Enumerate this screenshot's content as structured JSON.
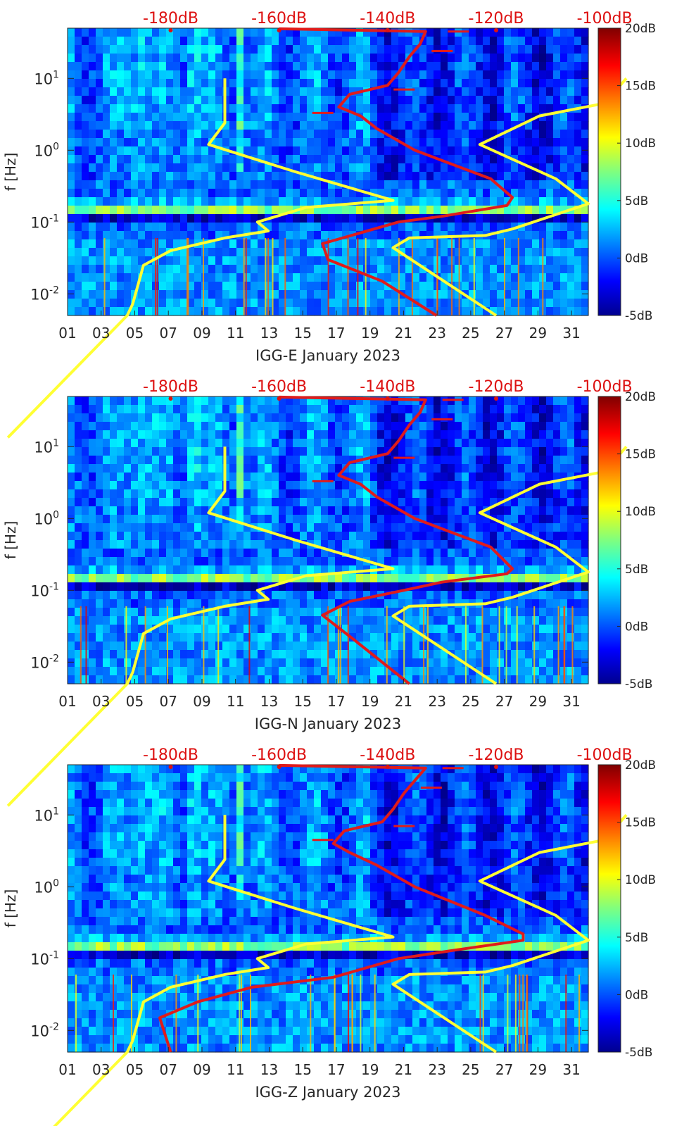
{
  "colors": {
    "noise_model_line": "#ffff33",
    "median_psd_line": "#e01b1b",
    "top_axis_text": "#dd1111",
    "axis_text": "#262626"
  },
  "colormap": "jet",
  "chart_data": [
    {
      "type": "heatmap",
      "title": "",
      "xlabel": "IGG-E January 2023",
      "ylabel": "f [Hz]",
      "x_ticks": [
        "01",
        "03",
        "05",
        "07",
        "09",
        "11",
        "13",
        "15",
        "17",
        "19",
        "21",
        "23",
        "25",
        "27",
        "29",
        "31"
      ],
      "x_range_days": [
        1,
        32
      ],
      "y_scale": "log",
      "y_range_hz": [
        0.005,
        50
      ],
      "y_ticks": [
        "10^-2",
        "10^-1",
        "10^0",
        "10^1"
      ],
      "top_axis_ticks": [
        "-180dB",
        "-160dB",
        "-140dB",
        "-120dB",
        "-100dB"
      ],
      "top_axis_range_db": [
        -199,
        -103
      ],
      "colorbar_ticks": [
        "20dB",
        "15dB",
        "10dB",
        "5dB",
        "0dB",
        "-5dB"
      ],
      "colorbar_range_db": [
        -5,
        20
      ],
      "series": [
        {
          "kind": "noise-model-lines",
          "lines": [
            {
              "part": "low-noise-model",
              "points": [
                [
                  -210,
                  0.0001
                ],
                [
                  -188,
                  0.005
                ],
                [
                  -187,
                  0.0072
                ],
                [
                  -185,
                  0.025
                ],
                [
                  -180,
                  0.04
                ],
                [
                  -170,
                  0.06
                ],
                [
                  -162,
                  0.075
                ],
                [
                  -164,
                  0.1
                ],
                [
                  -155,
                  0.16
                ],
                [
                  -139,
                  0.2
                ],
                [
                  -157,
                  0.5
                ],
                [
                  -173,
                  1.2
                ],
                [
                  -170,
                  2.4
                ],
                [
                  -170,
                  4.4
                ],
                [
                  -170,
                  10
                ]
              ]
            },
            {
              "part": "high-noise-model",
              "points": [
                [
                  -120,
                  0.005
                ],
                [
                  -139,
                  0.044
                ],
                [
                  -136,
                  0.06
                ],
                [
                  -122,
                  0.065
                ],
                [
                  -117,
                  0.08
                ],
                [
                  -103,
                  0.18
                ],
                [
                  -109,
                  0.4
                ],
                [
                  -123,
                  1.2
                ],
                [
                  -112,
                  3.0
                ],
                [
                  -100,
                  4.5
                ],
                [
                  -96,
                  10
                ]
              ]
            }
          ]
        },
        {
          "kind": "median-psd-line",
          "points": [
            [
              -131,
              0.005
            ],
            [
              -141,
              0.015
            ],
            [
              -151,
              0.03
            ],
            [
              -152,
              0.05
            ],
            [
              -138,
              0.1
            ],
            [
              -130,
              0.12
            ],
            [
              -118,
              0.17
            ],
            [
              -117,
              0.22
            ],
            [
              -121,
              0.4
            ],
            [
              -135,
              1.0
            ],
            [
              -142,
              2.0
            ],
            [
              -145,
              3.0
            ],
            [
              -149,
              4.0
            ],
            [
              -147,
              6.0
            ],
            [
              -140,
              8.0
            ],
            [
              -138,
              12
            ],
            [
              -136,
              20
            ],
            [
              -134,
              30
            ],
            [
              -133,
              45
            ],
            [
              -160,
              49
            ]
          ],
          "peaks": [
            [
              -150,
              3.3
            ],
            [
              -135,
              7
            ],
            [
              -128,
              24
            ],
            [
              -125,
              45
            ]
          ]
        }
      ]
    },
    {
      "type": "heatmap",
      "title": "",
      "xlabel": "IGG-N January 2023",
      "ylabel": "f [Hz]",
      "x_ticks": [
        "01",
        "03",
        "05",
        "07",
        "09",
        "11",
        "13",
        "15",
        "17",
        "19",
        "21",
        "23",
        "25",
        "27",
        "29",
        "31"
      ],
      "x_range_days": [
        1,
        32
      ],
      "y_scale": "log",
      "y_range_hz": [
        0.005,
        50
      ],
      "y_ticks": [
        "10^-2",
        "10^-1",
        "10^0",
        "10^1"
      ],
      "top_axis_ticks": [
        "-180dB",
        "-160dB",
        "-140dB",
        "-120dB",
        "-100dB"
      ],
      "top_axis_range_db": [
        -199,
        -103
      ],
      "colorbar_ticks": [
        "20dB",
        "15dB",
        "10dB",
        "5dB",
        "0dB",
        "-5dB"
      ],
      "colorbar_range_db": [
        -5,
        20
      ],
      "series": [
        {
          "kind": "noise-model-lines",
          "lines": [
            {
              "part": "low-noise-model",
              "points": [
                [
                  -210,
                  0.0001
                ],
                [
                  -188,
                  0.005
                ],
                [
                  -187,
                  0.0072
                ],
                [
                  -185,
                  0.025
                ],
                [
                  -180,
                  0.04
                ],
                [
                  -170,
                  0.06
                ],
                [
                  -162,
                  0.075
                ],
                [
                  -164,
                  0.1
                ],
                [
                  -155,
                  0.16
                ],
                [
                  -139,
                  0.2
                ],
                [
                  -157,
                  0.5
                ],
                [
                  -173,
                  1.2
                ],
                [
                  -170,
                  2.4
                ],
                [
                  -170,
                  4.4
                ],
                [
                  -170,
                  10
                ]
              ]
            },
            {
              "part": "high-noise-model",
              "points": [
                [
                  -120,
                  0.005
                ],
                [
                  -139,
                  0.044
                ],
                [
                  -136,
                  0.06
                ],
                [
                  -122,
                  0.065
                ],
                [
                  -117,
                  0.08
                ],
                [
                  -103,
                  0.18
                ],
                [
                  -109,
                  0.4
                ],
                [
                  -123,
                  1.2
                ],
                [
                  -112,
                  3.0
                ],
                [
                  -100,
                  4.5
                ],
                [
                  -96,
                  10
                ]
              ]
            }
          ]
        },
        {
          "kind": "median-psd-line",
          "points": [
            [
              -136,
              0.005
            ],
            [
              -146,
              0.02
            ],
            [
              -152,
              0.045
            ],
            [
              -147,
              0.07
            ],
            [
              -137,
              0.1
            ],
            [
              -130,
              0.13
            ],
            [
              -118,
              0.17
            ],
            [
              -117,
              0.2
            ],
            [
              -121,
              0.4
            ],
            [
              -135,
              1.0
            ],
            [
              -142,
              2.0
            ],
            [
              -145,
              3.0
            ],
            [
              -149,
              4.0
            ],
            [
              -147,
              6.0
            ],
            [
              -140,
              8.0
            ],
            [
              -138,
              12
            ],
            [
              -136,
              20
            ],
            [
              -134,
              30
            ],
            [
              -133,
              45
            ],
            [
              -160,
              49
            ]
          ],
          "peaks": [
            [
              -150,
              3.3
            ],
            [
              -135,
              7
            ],
            [
              -128,
              24
            ],
            [
              -126,
              45
            ]
          ]
        }
      ]
    },
    {
      "type": "heatmap",
      "title": "",
      "xlabel": "IGG-Z January 2023",
      "ylabel": "f [Hz]",
      "x_ticks": [
        "01",
        "03",
        "05",
        "07",
        "09",
        "11",
        "13",
        "15",
        "17",
        "19",
        "21",
        "23",
        "25",
        "27",
        "29",
        "31"
      ],
      "x_range_days": [
        1,
        32
      ],
      "y_scale": "log",
      "y_range_hz": [
        0.005,
        50
      ],
      "y_ticks": [
        "10^-2",
        "10^-1",
        "10^0",
        "10^1"
      ],
      "top_axis_ticks": [
        "-180dB",
        "-160dB",
        "-140dB",
        "-120dB",
        "-100dB"
      ],
      "top_axis_range_db": [
        -199,
        -103
      ],
      "colorbar_ticks": [
        "20dB",
        "15dB",
        "10dB",
        "5dB",
        "0dB",
        "-5dB"
      ],
      "colorbar_range_db": [
        -5,
        20
      ],
      "series": [
        {
          "kind": "noise-model-lines",
          "lines": [
            {
              "part": "low-noise-model",
              "points": [
                [
                  -210,
                  0.0001
                ],
                [
                  -188,
                  0.005
                ],
                [
                  -187,
                  0.0072
                ],
                [
                  -185,
                  0.025
                ],
                [
                  -180,
                  0.04
                ],
                [
                  -170,
                  0.06
                ],
                [
                  -162,
                  0.075
                ],
                [
                  -164,
                  0.1
                ],
                [
                  -155,
                  0.16
                ],
                [
                  -139,
                  0.2
                ],
                [
                  -157,
                  0.5
                ],
                [
                  -173,
                  1.2
                ],
                [
                  -170,
                  2.4
                ],
                [
                  -170,
                  4.4
                ],
                [
                  -170,
                  10
                ]
              ]
            },
            {
              "part": "high-noise-model",
              "points": [
                [
                  -120,
                  0.005
                ],
                [
                  -139,
                  0.044
                ],
                [
                  -136,
                  0.06
                ],
                [
                  -122,
                  0.065
                ],
                [
                  -117,
                  0.08
                ],
                [
                  -103,
                  0.18
                ],
                [
                  -109,
                  0.4
                ],
                [
                  -123,
                  1.2
                ],
                [
                  -112,
                  3.0
                ],
                [
                  -100,
                  4.5
                ],
                [
                  -96,
                  10
                ]
              ]
            }
          ]
        },
        {
          "kind": "median-psd-line",
          "points": [
            [
              -180,
              0.005
            ],
            [
              -182,
              0.015
            ],
            [
              -175,
              0.025
            ],
            [
              -165,
              0.04
            ],
            [
              -150,
              0.055
            ],
            [
              -138,
              0.1
            ],
            [
              -128,
              0.13
            ],
            [
              -115,
              0.18
            ],
            [
              -115,
              0.22
            ],
            [
              -122,
              0.4
            ],
            [
              -135,
              1.0
            ],
            [
              -142,
              2.0
            ],
            [
              -147,
              3.0
            ],
            [
              -150,
              4.0
            ],
            [
              -148,
              6.0
            ],
            [
              -141,
              8.0
            ],
            [
              -139,
              12
            ],
            [
              -137,
              20
            ],
            [
              -135,
              30
            ],
            [
              -133,
              45
            ],
            [
              -160,
              49
            ]
          ],
          "peaks": [
            [
              -150,
              4.5
            ],
            [
              -135,
              7
            ],
            [
              -130,
              24
            ],
            [
              -126,
              45
            ]
          ]
        }
      ]
    }
  ]
}
